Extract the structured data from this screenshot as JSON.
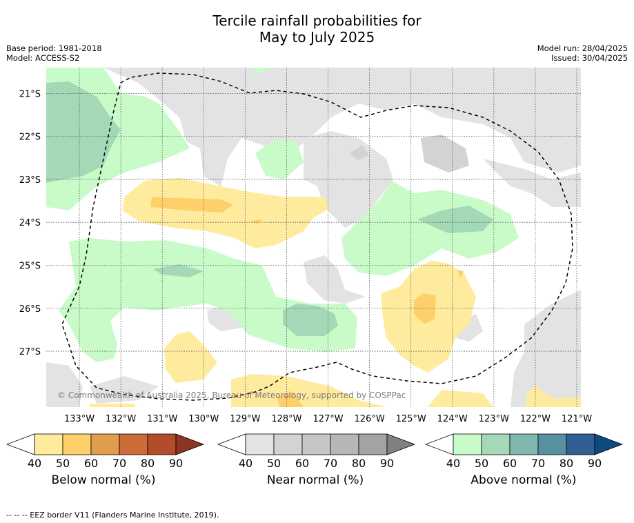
{
  "header": {
    "title_line1": "Tercile rainfall probabilities for",
    "title_line2": "May to July 2025",
    "base_period": "Base period: 1981-2018",
    "model": "Model: ACCESS-S2",
    "model_run": "Model run: 28/04/2025",
    "issued": "Issued: 30/04/2025"
  },
  "map": {
    "copyright": "© Commonwealth of Australia 2025, Bureau of Meteorology, supported by COSPPac",
    "lat_labels": [
      "21°S",
      "22°S",
      "23°S",
      "24°S",
      "25°S",
      "26°S",
      "27°S"
    ],
    "lon_labels": [
      "133°W",
      "132°W",
      "131°W",
      "130°W",
      "129°W",
      "128°W",
      "127°W",
      "126°W",
      "125°W",
      "124°W",
      "123°W",
      "122°W",
      "121°W"
    ]
  },
  "colorbars": {
    "below": {
      "title": "Below normal (%)",
      "ticks": [
        "40",
        "50",
        "60",
        "70",
        "80",
        "90"
      ],
      "colors": [
        "#ffffff",
        "#feeb9e",
        "#fed06a",
        "#e19d4e",
        "#cc6a38",
        "#b24d2c",
        "#8e3424"
      ]
    },
    "near": {
      "title": "Near normal (%)",
      "ticks": [
        "40",
        "50",
        "60",
        "70",
        "80",
        "90"
      ],
      "colors": [
        "#ffffff",
        "#e3e3e3",
        "#d3d3d3",
        "#c6c6c6",
        "#b6b6b6",
        "#a3a3a3",
        "#808080"
      ]
    },
    "above": {
      "title": "Above normal (%)",
      "ticks": [
        "40",
        "50",
        "60",
        "70",
        "80",
        "90"
      ],
      "colors": [
        "#ffffff",
        "#c9fbc9",
        "#a3d9b6",
        "#80b7ae",
        "#5990a0",
        "#305f93",
        "#0e4a80"
      ]
    }
  },
  "footer": {
    "eez_note": "--  --  -- EEZ border V11 (Flanders Marine Institute, 2019)."
  },
  "chart_data": {
    "type": "heatmap",
    "title": "Tercile rainfall probabilities for May to July 2025",
    "xlabel": "",
    "ylabel": "",
    "xlim": [
      -133.8,
      -120.9
    ],
    "ylim": [
      -28.3,
      -20.4
    ],
    "x_ticks": [
      -133,
      -132,
      -131,
      -130,
      -129,
      -128,
      -127,
      -126,
      -125,
      -124,
      -123,
      -122,
      -121
    ],
    "y_ticks": [
      -21,
      -22,
      -23,
      -24,
      -25,
      -26,
      -27
    ],
    "grid": true,
    "categories": [
      "Below normal (%)",
      "Near normal (%)",
      "Above normal (%)"
    ],
    "levels": [
      40,
      50,
      60,
      70,
      80,
      90
    ],
    "regions": [
      {
        "category": "Above normal (%)",
        "level": "50-60",
        "location": "west, 21.5°S-22.5°S, 133°W"
      },
      {
        "category": "Above normal (%)",
        "level": "50-60",
        "location": "24°S, 123.5°W"
      },
      {
        "category": "Above normal (%)",
        "level": "50-60",
        "location": "26.5°S, 127.5°W"
      },
      {
        "category": "Above normal (%)",
        "level": "50-60",
        "location": "25.3°S, 131°W"
      },
      {
        "category": "Below normal (%)",
        "level": "50-60",
        "location": "24°S, 131.5°W"
      },
      {
        "category": "Below normal (%)",
        "level": "50-60",
        "location": "26.2°S, 124.6°W"
      },
      {
        "category": "Near normal (%)",
        "level": "40-50",
        "location": "north and east of domain"
      }
    ]
  }
}
